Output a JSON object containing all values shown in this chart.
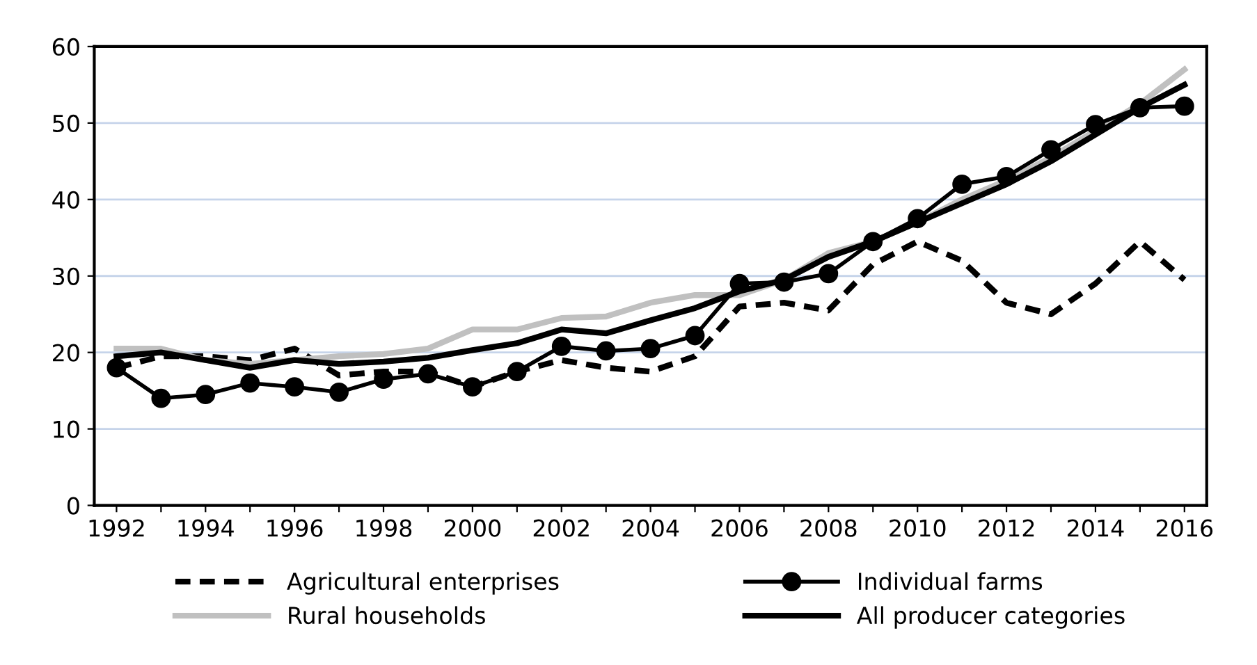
{
  "chart_data": {
    "type": "line",
    "x": [
      1992,
      1993,
      1994,
      1995,
      1996,
      1997,
      1998,
      1999,
      2000,
      2001,
      2002,
      2003,
      2004,
      2005,
      2006,
      2007,
      2008,
      2009,
      2010,
      2011,
      2012,
      2013,
      2014,
      2015,
      2016
    ],
    "series": [
      {
        "name": "Agricultural enterprises",
        "color": "#000000",
        "line_style": "dashed",
        "marker": "none",
        "values": [
          18,
          19.5,
          19.5,
          19,
          20.5,
          17,
          17.5,
          17.5,
          15.5,
          17.5,
          19,
          18,
          17.5,
          19.5,
          26,
          26.5,
          25.5,
          31.5,
          34.5,
          32,
          26.5,
          25,
          29,
          34.5,
          29.5
        ]
      },
      {
        "name": "Individual farms",
        "color": "#000000",
        "line_style": "solid",
        "marker": "circle",
        "values": [
          18,
          14,
          14.5,
          16,
          15.5,
          14.8,
          16.5,
          17.2,
          15.5,
          17.5,
          20.8,
          20.2,
          20.5,
          22.2,
          29,
          29.2,
          30.3,
          34.5,
          37.5,
          42,
          43,
          46.5,
          49.8,
          52,
          52.2
        ]
      },
      {
        "name": "Rural households",
        "color": "#c0c0c0",
        "line_style": "solid",
        "marker": "none",
        "values": [
          20.5,
          20.5,
          19,
          18.5,
          19,
          19.5,
          19.8,
          20.5,
          23,
          23,
          24.5,
          24.7,
          26.5,
          27.5,
          27.5,
          29.5,
          33,
          34.5,
          37,
          40,
          42.5,
          45.5,
          49,
          52.5,
          57
        ]
      },
      {
        "name": "All producer categories",
        "color": "#000000",
        "line_style": "solid",
        "marker": "none",
        "values": [
          19.5,
          20,
          19,
          18,
          19,
          18.5,
          18.8,
          19.3,
          20.3,
          21.2,
          23,
          22.5,
          24.2,
          25.8,
          28,
          29.5,
          32.5,
          34.5,
          37,
          39.5,
          42,
          45,
          48.5,
          52,
          55
        ]
      }
    ],
    "xlim": [
      1991.5,
      2016.5
    ],
    "xticks": [
      1992,
      {
        "value": 1993,
        "label": null
      },
      1994,
      {
        "value": 1995,
        "label": null
      },
      1996,
      {
        "value": 1997,
        "label": null
      },
      1998,
      {
        "value": 1999,
        "label": null
      },
      2000,
      {
        "value": 2001,
        "label": null
      },
      2002,
      {
        "value": 2003,
        "label": null
      },
      2004,
      {
        "value": 2005,
        "label": null
      },
      2006,
      {
        "value": 2007,
        "label": null
      },
      2008,
      {
        "value": 2009,
        "label": null
      },
      2010,
      {
        "value": 2011,
        "label": null
      },
      2012,
      {
        "value": 2013,
        "label": null
      },
      2014,
      {
        "value": 2015,
        "label": null
      },
      2016
    ],
    "ylim": [
      0,
      60
    ],
    "yticks": [
      0,
      10,
      20,
      30,
      40,
      50,
      60
    ],
    "grid": "y",
    "legend": "bottom"
  }
}
